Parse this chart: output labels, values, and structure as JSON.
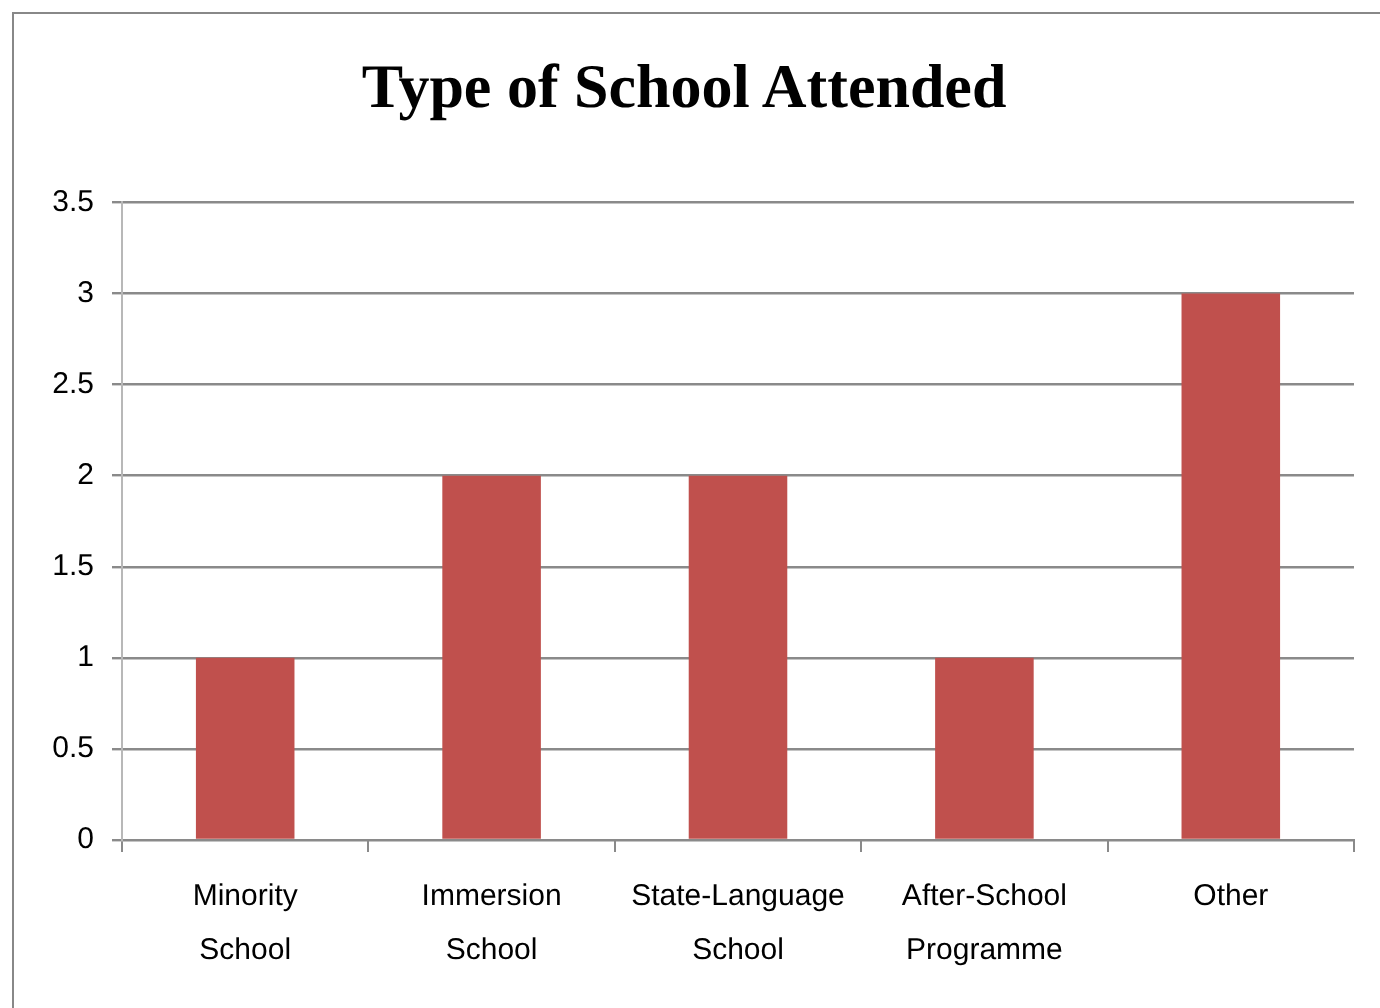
{
  "chart_data": {
    "type": "bar",
    "title": "Type of School Attended",
    "categories": [
      "Minority School",
      "Immersion School",
      "State-Language School",
      "After-School Programme",
      "Other"
    ],
    "values": [
      1,
      2,
      2,
      1,
      3
    ],
    "color": "#c0504d",
    "ylim": [
      0,
      3.5
    ],
    "yticks": [
      0,
      0.5,
      1,
      1.5,
      2,
      2.5,
      3,
      3.5
    ],
    "grid": "y"
  }
}
